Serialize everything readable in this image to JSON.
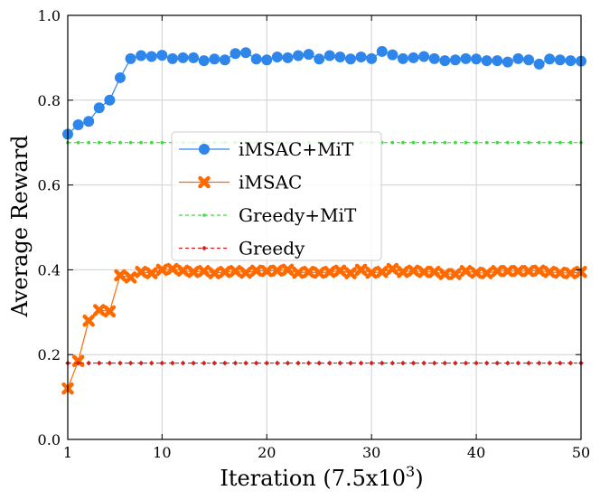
{
  "chart_data": {
    "type": "line",
    "title": "",
    "xlabel": "Iteration (7.5x10",
    "xlabel_exp": "3",
    "xlabel_close": ")",
    "ylabel": "Average Reward",
    "xlim": [
      1,
      50
    ],
    "ylim": [
      0.0,
      1.0
    ],
    "xticks": [
      1,
      10,
      20,
      30,
      40,
      50
    ],
    "yticks": [
      0.0,
      0.2,
      0.4,
      0.6,
      0.8,
      1.0
    ],
    "ytick_labels": [
      "0.0",
      "0.2",
      "0.4",
      "0.6",
      "0.8",
      "1.0"
    ],
    "grid": true,
    "legend_position": "center-left",
    "x": [
      1,
      2,
      3,
      4,
      5,
      6,
      7,
      8,
      9,
      10,
      11,
      12,
      13,
      14,
      15,
      16,
      17,
      18,
      19,
      20,
      21,
      22,
      23,
      24,
      25,
      26,
      27,
      28,
      29,
      30,
      31,
      32,
      33,
      34,
      35,
      36,
      37,
      38,
      39,
      40,
      41,
      42,
      43,
      44,
      45,
      46,
      47,
      48,
      49,
      50
    ],
    "series": [
      {
        "name": "iMSAC+MiT",
        "color": "#2e86ea",
        "marker": "circle",
        "dashed": false,
        "values": [
          0.72,
          0.742,
          0.75,
          0.782,
          0.8,
          0.853,
          0.898,
          0.905,
          0.903,
          0.906,
          0.898,
          0.9,
          0.9,
          0.893,
          0.897,
          0.895,
          0.91,
          0.912,
          0.897,
          0.895,
          0.902,
          0.9,
          0.905,
          0.908,
          0.897,
          0.905,
          0.902,
          0.897,
          0.902,
          0.898,
          0.915,
          0.907,
          0.898,
          0.9,
          0.903,
          0.898,
          0.893,
          0.895,
          0.898,
          0.897,
          0.893,
          0.893,
          0.89,
          0.898,
          0.895,
          0.885,
          0.897,
          0.895,
          0.893,
          0.892
        ]
      },
      {
        "name": "iMSAC",
        "color": "#ff6a00",
        "marker": "x",
        "dashed": false,
        "values": [
          0.12,
          0.185,
          0.28,
          0.305,
          0.302,
          0.387,
          0.382,
          0.395,
          0.392,
          0.4,
          0.402,
          0.398,
          0.395,
          0.397,
          0.392,
          0.395,
          0.397,
          0.393,
          0.398,
          0.397,
          0.398,
          0.4,
          0.393,
          0.395,
          0.393,
          0.395,
          0.398,
          0.392,
          0.4,
          0.393,
          0.395,
          0.402,
          0.395,
          0.398,
          0.395,
          0.395,
          0.39,
          0.39,
          0.397,
          0.393,
          0.392,
          0.397,
          0.397,
          0.397,
          0.397,
          0.398,
          0.395,
          0.393,
          0.392,
          0.395
        ]
      },
      {
        "name": "Greedy+MiT",
        "color": "#3ddc3d",
        "marker": "dot",
        "dashed": true,
        "values": [
          0.7,
          0.7,
          0.7,
          0.7,
          0.7,
          0.7,
          0.7,
          0.7,
          0.7,
          0.7,
          0.7,
          0.7,
          0.7,
          0.7,
          0.7,
          0.7,
          0.7,
          0.7,
          0.7,
          0.7,
          0.7,
          0.7,
          0.7,
          0.7,
          0.7,
          0.7,
          0.7,
          0.7,
          0.7,
          0.7,
          0.7,
          0.7,
          0.7,
          0.7,
          0.7,
          0.7,
          0.7,
          0.7,
          0.7,
          0.7,
          0.7,
          0.7,
          0.7,
          0.7,
          0.7,
          0.7,
          0.7,
          0.7,
          0.7,
          0.7
        ]
      },
      {
        "name": "Greedy",
        "color": "#d62020",
        "marker": "diamond",
        "dashed": true,
        "values": [
          0.18,
          0.18,
          0.18,
          0.18,
          0.18,
          0.18,
          0.18,
          0.18,
          0.18,
          0.18,
          0.18,
          0.18,
          0.18,
          0.18,
          0.18,
          0.18,
          0.18,
          0.18,
          0.18,
          0.18,
          0.18,
          0.18,
          0.18,
          0.18,
          0.18,
          0.18,
          0.18,
          0.18,
          0.18,
          0.18,
          0.18,
          0.18,
          0.18,
          0.18,
          0.18,
          0.18,
          0.18,
          0.18,
          0.18,
          0.18,
          0.18,
          0.18,
          0.18,
          0.18,
          0.18,
          0.18,
          0.18,
          0.18,
          0.18,
          0.18
        ]
      }
    ]
  }
}
